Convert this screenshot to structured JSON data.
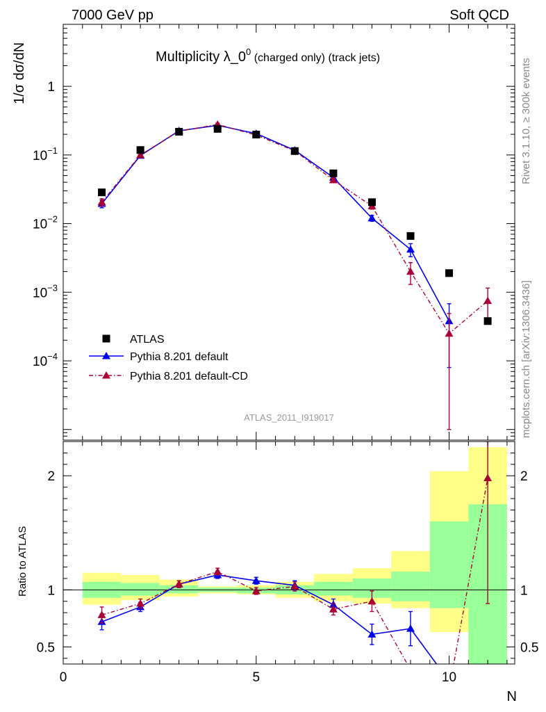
{
  "header": {
    "left": "7000 GeV pp",
    "right": "Soft QCD"
  },
  "side_text": {
    "top": "Rivet 3.1.10, ≥ 300k events",
    "bottom": "mcplots.cern.ch [arXiv:1306.3436]"
  },
  "colors": {
    "data": "#000000",
    "default": "#0000ee",
    "default_cd": "#aa0033",
    "band_inner": "#99ff99",
    "band_outer": "#ffff88"
  },
  "chart_data": [
    {
      "type": "scatter",
      "panel": "main",
      "title_main": "Multiplicity λ_0",
      "title_sup": "0",
      "title_extra": " (charged only) (track jets)",
      "ylabel": "1/σ dσ/dN",
      "yscale": "log",
      "ylim": [
        7e-06,
        8
      ],
      "xlim": [
        0,
        11.7
      ],
      "ytick_labels": [
        "1",
        "10^-1",
        "10^-2",
        "10^-3",
        "10^-4"
      ],
      "watermark": "ATLAS_2011_I919017",
      "legend": [
        "ATLAS",
        "Pythia 8.201 default",
        "Pythia 8.201 default-CD"
      ],
      "legend_position": "lower-left",
      "series": [
        {
          "name": "ATLAS",
          "x": [
            1,
            2,
            3,
            4,
            5,
            6,
            7,
            8,
            9,
            10,
            11
          ],
          "y": [
            0.0285,
            0.118,
            0.218,
            0.24,
            0.198,
            0.114,
            0.054,
            0.0205,
            0.0066,
            0.0019,
            0.00038
          ]
        },
        {
          "name": "Pythia 8.201 default",
          "x": [
            1,
            2,
            3,
            4,
            5,
            6,
            7,
            8,
            9,
            10
          ],
          "y": [
            0.0195,
            0.098,
            0.225,
            0.27,
            0.205,
            0.117,
            0.047,
            0.012,
            0.0042,
            0.00038
          ],
          "err": [
            0.0025,
            0.006,
            0.01,
            0.012,
            0.01,
            0.006,
            0.003,
            0.0012,
            0.0009,
            0.0003
          ]
        },
        {
          "name": "Pythia 8.201 default-CD",
          "x": [
            1,
            2,
            3,
            4,
            5,
            6,
            7,
            8,
            9,
            10,
            11
          ],
          "y": [
            0.0205,
            0.1,
            0.222,
            0.278,
            0.195,
            0.115,
            0.043,
            0.018,
            0.002,
            0.00025,
            0.00075
          ],
          "err": [
            0.0025,
            0.006,
            0.01,
            0.012,
            0.01,
            0.006,
            0.003,
            0.0018,
            0.0007,
            0.00024,
            0.0004
          ]
        }
      ]
    },
    {
      "type": "line",
      "panel": "ratio",
      "ylabel": "Ratio to ATLAS",
      "xlabel": "N",
      "ylim": [
        0.35,
        2.3
      ],
      "xlim": [
        0,
        11.7
      ],
      "x_ticks": [
        0,
        5,
        10
      ],
      "y_ticks": [
        0.5,
        1,
        2
      ],
      "bands": [
        {
          "xlo": 0.5,
          "xhi": 1.5,
          "inner": [
            0.93,
            1.07
          ],
          "outer": [
            0.87,
            1.15
          ]
        },
        {
          "xlo": 1.5,
          "xhi": 2.5,
          "inner": [
            0.95,
            1.06
          ],
          "outer": [
            0.91,
            1.13
          ]
        },
        {
          "xlo": 2.5,
          "xhi": 3.5,
          "inner": [
            0.97,
            1.04
          ],
          "outer": [
            0.94,
            1.09
          ]
        },
        {
          "xlo": 3.5,
          "xhi": 4.5,
          "inner": [
            0.98,
            1.02
          ],
          "outer": [
            0.97,
            1.03
          ]
        },
        {
          "xlo": 4.5,
          "xhi": 5.5,
          "inner": [
            0.97,
            1.02
          ],
          "outer": [
            0.96,
            1.04
          ]
        },
        {
          "xlo": 5.5,
          "xhi": 6.5,
          "inner": [
            0.96,
            1.04
          ],
          "outer": [
            0.93,
            1.07
          ]
        },
        {
          "xlo": 6.5,
          "xhi": 7.5,
          "inner": [
            0.95,
            1.07
          ],
          "outer": [
            0.9,
            1.14
          ]
        },
        {
          "xlo": 7.5,
          "xhi": 8.5,
          "inner": [
            0.93,
            1.1
          ],
          "outer": [
            0.88,
            1.19
          ]
        },
        {
          "xlo": 8.5,
          "xhi": 9.5,
          "inner": [
            0.9,
            1.16
          ],
          "outer": [
            0.84,
            1.34
          ]
        },
        {
          "xlo": 9.5,
          "xhi": 10.5,
          "inner": [
            0.84,
            1.6
          ],
          "outer": [
            0.63,
            2.04
          ]
        },
        {
          "xlo": 10.5,
          "xhi": 11.5,
          "inner": [
            0.35,
            1.75
          ],
          "outer": [
            0.35,
            2.25
          ]
        }
      ],
      "series": [
        {
          "name": "Pythia 8.201 default",
          "x": [
            1,
            2,
            3,
            4,
            5,
            6,
            7,
            8,
            9,
            10
          ],
          "y": [
            0.72,
            0.85,
            1.05,
            1.13,
            1.08,
            1.04,
            0.87,
            0.61,
            0.66,
            0.2
          ],
          "err": [
            0.07,
            0.04,
            0.03,
            0.03,
            0.03,
            0.04,
            0.05,
            0.09,
            0.15,
            0.18
          ]
        },
        {
          "name": "Pythia 8.201 default-CD",
          "x": [
            1,
            2,
            3,
            4,
            5,
            6,
            7,
            8,
            9,
            10,
            11
          ],
          "y": [
            0.78,
            0.88,
            1.05,
            1.16,
            0.99,
            1.03,
            0.83,
            0.9,
            0.3,
            0.13,
            1.98
          ],
          "err": [
            0.07,
            0.04,
            0.03,
            0.03,
            0.03,
            0.04,
            0.05,
            0.09,
            0.1,
            0.13,
            1.1
          ]
        }
      ]
    }
  ]
}
